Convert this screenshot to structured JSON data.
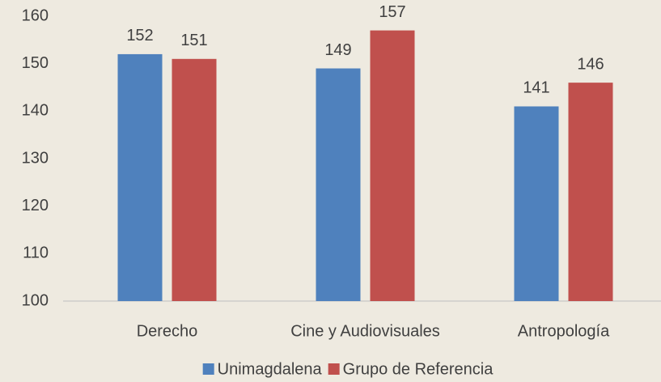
{
  "chart_data": {
    "type": "bar",
    "categories": [
      "Derecho",
      "Cine y Audiovisuales",
      "Antropología"
    ],
    "series": [
      {
        "name": "Unimagdalena",
        "color": "#4f81bd",
        "values": [
          152,
          149,
          141
        ]
      },
      {
        "name": "Grupo de Referencia",
        "color": "#c0504d",
        "values": [
          151,
          157,
          146
        ]
      }
    ],
    "ylim": [
      100,
      160
    ],
    "yticks": [
      100,
      110,
      120,
      130,
      140,
      150,
      160
    ],
    "grid": false,
    "legend": "bottom"
  }
}
